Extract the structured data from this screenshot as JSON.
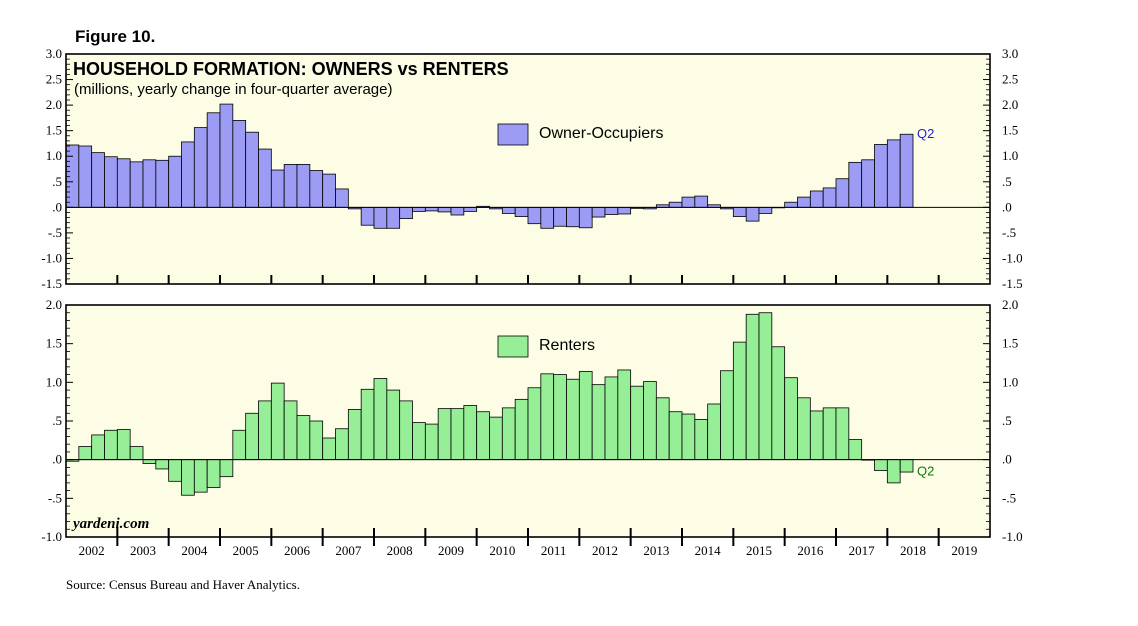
{
  "figure_label": "Figure 10.",
  "source": "Source: Census Bureau and Haver Analytics.",
  "watermark": "yardeni.com",
  "colors": {
    "panel_bg": "#fdfde6",
    "owner_fill": "#9c9cf5",
    "renter_fill": "#96ee96",
    "owner_q_label": "#2222cc",
    "renter_q_label": "#117711"
  },
  "chart_data": [
    {
      "type": "bar",
      "title": "HOUSEHOLD FORMATION: OWNERS vs RENTERS",
      "subtitle": "(millions, yearly change in four-quarter average)",
      "legend": "Owner-Occupiers",
      "end_label": "Q2",
      "ylim": [
        -1.5,
        3.0
      ],
      "yticks": [
        {
          "v": 3.0,
          "label": "3.0"
        },
        {
          "v": 2.5,
          "label": "2.5"
        },
        {
          "v": 2.0,
          "label": "2.0"
        },
        {
          "v": 1.5,
          "label": "1.5"
        },
        {
          "v": 1.0,
          "label": "1.0"
        },
        {
          "v": 0.5,
          "label": ".5"
        },
        {
          "v": 0.0,
          "label": ".0"
        },
        {
          "v": -0.5,
          "label": "-.5"
        },
        {
          "v": -1.0,
          "label": "-1.0"
        },
        {
          "v": -1.5,
          "label": "-1.5"
        }
      ],
      "start_year": 2002,
      "values": [
        1.22,
        1.2,
        1.07,
        0.99,
        0.95,
        0.89,
        0.93,
        0.92,
        1.0,
        1.28,
        1.56,
        1.85,
        2.02,
        1.7,
        1.47,
        1.14,
        0.73,
        0.84,
        0.84,
        0.72,
        0.65,
        0.36,
        -0.03,
        -0.35,
        -0.41,
        -0.41,
        -0.22,
        -0.08,
        -0.07,
        -0.09,
        -0.15,
        -0.08,
        0.02,
        -0.03,
        -0.12,
        -0.18,
        -0.32,
        -0.41,
        -0.37,
        -0.38,
        -0.4,
        -0.19,
        -0.14,
        -0.13,
        -0.02,
        -0.03,
        0.05,
        0.1,
        0.2,
        0.22,
        0.05,
        -0.03,
        -0.18,
        -0.27,
        -0.12,
        -0.01,
        0.1,
        0.2,
        0.32,
        0.38,
        0.56,
        0.88,
        0.93,
        1.23,
        1.32,
        1.43
      ]
    },
    {
      "type": "bar",
      "legend": "Renters",
      "end_label": "Q2",
      "ylim": [
        -1.0,
        2.0
      ],
      "yticks": [
        {
          "v": 2.0,
          "label": "2.0"
        },
        {
          "v": 1.5,
          "label": "1.5"
        },
        {
          "v": 1.0,
          "label": "1.0"
        },
        {
          "v": 0.5,
          "label": ".5"
        },
        {
          "v": 0.0,
          "label": ".0"
        },
        {
          "v": -0.5,
          "label": "-.5"
        },
        {
          "v": -1.0,
          "label": "-1.0"
        }
      ],
      "start_year": 2002,
      "x_labels": [
        "2002",
        "2003",
        "2004",
        "2005",
        "2006",
        "2007",
        "2008",
        "2009",
        "2010",
        "2011",
        "2012",
        "2013",
        "2014",
        "2015",
        "2016",
        "2017",
        "2018",
        "2019"
      ],
      "values": [
        -0.02,
        0.17,
        0.32,
        0.38,
        0.39,
        0.17,
        -0.05,
        -0.12,
        -0.28,
        -0.46,
        -0.42,
        -0.36,
        -0.22,
        0.38,
        0.6,
        0.76,
        0.99,
        0.76,
        0.57,
        0.5,
        0.28,
        0.4,
        0.65,
        0.91,
        1.05,
        0.9,
        0.76,
        0.48,
        0.46,
        0.66,
        0.66,
        0.7,
        0.62,
        0.55,
        0.67,
        0.78,
        0.93,
        1.11,
        1.1,
        1.04,
        1.14,
        0.97,
        1.07,
        1.16,
        0.95,
        1.01,
        0.8,
        0.62,
        0.59,
        0.52,
        0.72,
        1.15,
        1.52,
        1.88,
        1.9,
        1.46,
        1.06,
        0.8,
        0.63,
        0.67,
        0.67,
        0.26,
        0.0,
        -0.14,
        -0.3,
        -0.16
      ]
    }
  ]
}
